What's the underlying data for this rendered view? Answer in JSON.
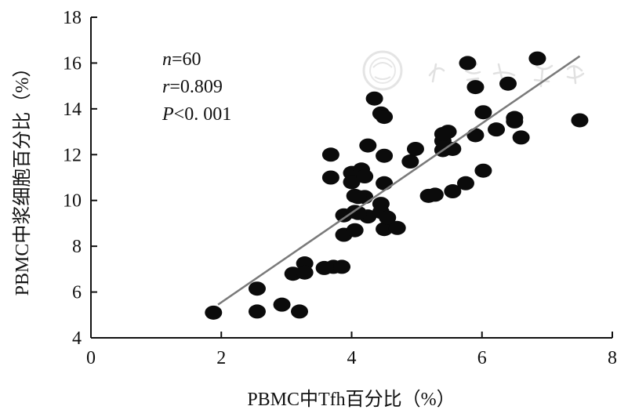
{
  "chart_data": {
    "type": "scatter",
    "xlabel": "PBMC中Tfh百分比（%）",
    "ylabel": "PBMC中浆细胞百分比（%）",
    "xlim": [
      0,
      8
    ],
    "ylim": [
      4,
      18
    ],
    "xticks": [
      0,
      2,
      4,
      6,
      8
    ],
    "yticks": [
      4,
      6,
      8,
      10,
      12,
      14,
      16,
      18
    ],
    "annotations": {
      "n_sym": "n",
      "n_val": "=60",
      "r_sym": "r",
      "r_val": "=0.809",
      "p_sym": "P",
      "p_val": "<0. 001"
    },
    "trendline": {
      "x": [
        1.95,
        7.5
      ],
      "y": [
        5.45,
        16.3
      ]
    },
    "points": [
      {
        "x": 1.88,
        "y": 5.1
      },
      {
        "x": 2.55,
        "y": 6.15
      },
      {
        "x": 2.55,
        "y": 5.15
      },
      {
        "x": 2.93,
        "y": 5.45
      },
      {
        "x": 3.2,
        "y": 5.15
      },
      {
        "x": 3.1,
        "y": 6.8
      },
      {
        "x": 3.28,
        "y": 7.25
      },
      {
        "x": 3.28,
        "y": 6.85
      },
      {
        "x": 3.58,
        "y": 7.05
      },
      {
        "x": 3.72,
        "y": 7.1
      },
      {
        "x": 3.85,
        "y": 7.1
      },
      {
        "x": 3.68,
        "y": 12.0
      },
      {
        "x": 3.68,
        "y": 11.0
      },
      {
        "x": 3.88,
        "y": 9.35
      },
      {
        "x": 3.88,
        "y": 8.5
      },
      {
        "x": 4.0,
        "y": 11.2
      },
      {
        "x": 4.0,
        "y": 10.8
      },
      {
        "x": 4.05,
        "y": 10.2
      },
      {
        "x": 4.05,
        "y": 9.5
      },
      {
        "x": 4.05,
        "y": 8.7
      },
      {
        "x": 4.15,
        "y": 11.35
      },
      {
        "x": 4.2,
        "y": 11.05
      },
      {
        "x": 4.2,
        "y": 10.15
      },
      {
        "x": 4.25,
        "y": 12.4
      },
      {
        "x": 4.25,
        "y": 9.3
      },
      {
        "x": 4.35,
        "y": 14.45
      },
      {
        "x": 4.45,
        "y": 13.8
      },
      {
        "x": 4.5,
        "y": 13.65
      },
      {
        "x": 4.45,
        "y": 9.85
      },
      {
        "x": 4.45,
        "y": 9.5
      },
      {
        "x": 4.5,
        "y": 11.95
      },
      {
        "x": 4.5,
        "y": 10.75
      },
      {
        "x": 4.5,
        "y": 8.75
      },
      {
        "x": 4.7,
        "y": 8.8
      },
      {
        "x": 4.9,
        "y": 11.7
      },
      {
        "x": 4.98,
        "y": 12.25
      },
      {
        "x": 5.18,
        "y": 10.2
      },
      {
        "x": 5.28,
        "y": 10.25
      },
      {
        "x": 5.4,
        "y": 12.6
      },
      {
        "x": 5.4,
        "y": 12.2
      },
      {
        "x": 5.48,
        "y": 13.0
      },
      {
        "x": 5.55,
        "y": 12.25
      },
      {
        "x": 5.55,
        "y": 10.4
      },
      {
        "x": 5.75,
        "y": 10.75
      },
      {
        "x": 5.78,
        "y": 16.0
      },
      {
        "x": 5.9,
        "y": 14.95
      },
      {
        "x": 5.9,
        "y": 12.85
      },
      {
        "x": 6.02,
        "y": 13.85
      },
      {
        "x": 6.02,
        "y": 11.3
      },
      {
        "x": 6.22,
        "y": 13.1
      },
      {
        "x": 6.4,
        "y": 15.1
      },
      {
        "x": 6.5,
        "y": 13.6
      },
      {
        "x": 6.5,
        "y": 13.45
      },
      {
        "x": 6.6,
        "y": 12.75
      },
      {
        "x": 6.85,
        "y": 16.2
      },
      {
        "x": 7.5,
        "y": 13.5
      },
      {
        "x": 4.55,
        "y": 9.25
      },
      {
        "x": 4.1,
        "y": 9.45
      },
      {
        "x": 5.4,
        "y": 12.9
      },
      {
        "x": 4.1,
        "y": 10.15
      }
    ]
  }
}
